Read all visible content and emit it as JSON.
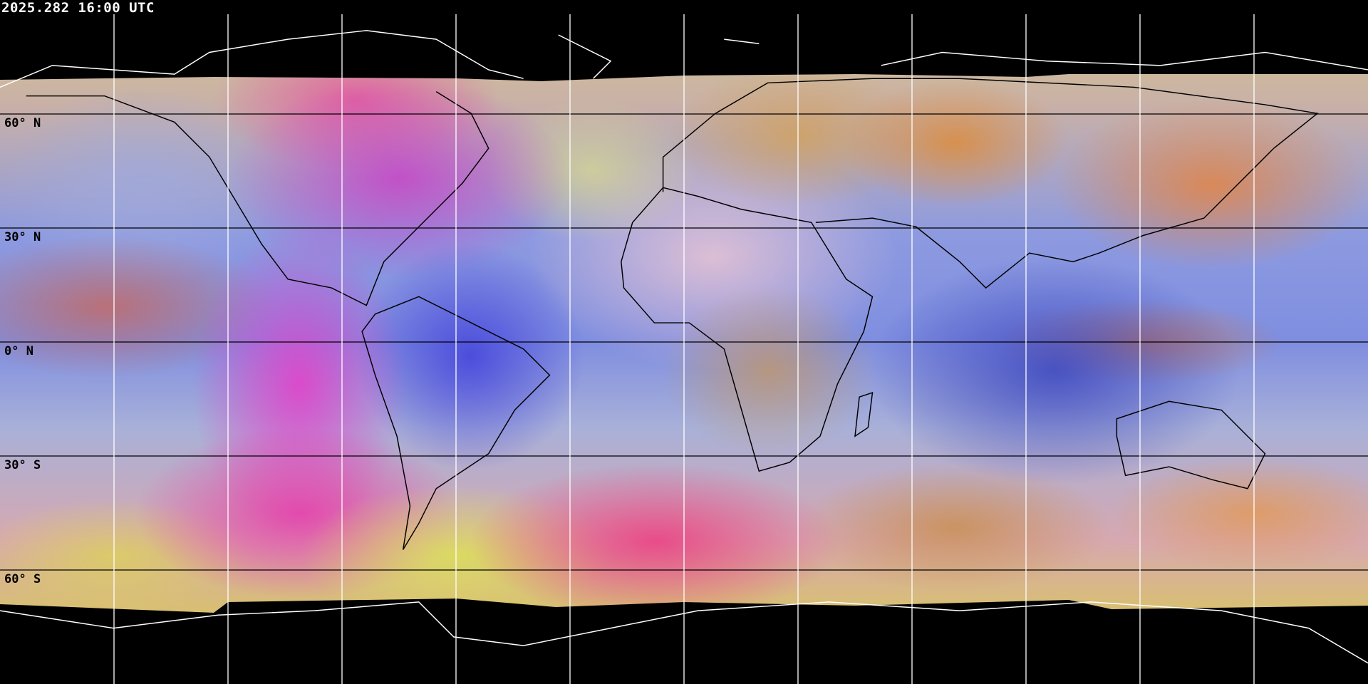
{
  "header": {
    "timestamp": "2025.282 16:00 UTC"
  },
  "map": {
    "projection": "equirectangular",
    "grid_spacing_degrees": 30,
    "latitude_labels": [
      "60° N",
      "30° N",
      "0° N",
      "30° S",
      "60° S"
    ],
    "colors": {
      "background": "#000000",
      "gridlines_on_imagery": "#000000",
      "gridlines_off_imagery": "#ffffff",
      "coastlines_on_imagery": "#000000",
      "coastlines_off_imagery": "#ffffff"
    }
  }
}
